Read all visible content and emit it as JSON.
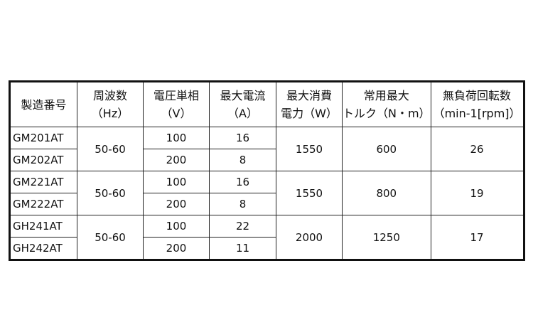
{
  "headers": [
    [
      "製造番号"
    ],
    [
      "周波数",
      "（Hz）"
    ],
    [
      "電圧単相",
      "（V）"
    ],
    [
      "最大電流",
      "（A）"
    ],
    [
      "最大消費",
      "電力（W）"
    ],
    [
      "常用最大",
      "トルク（N・m）"
    ],
    [
      "無負荷回転数",
      "（min-1[rpm]）"
    ]
  ],
  "groups": [
    {
      "frequency": "50-60",
      "power": "1550",
      "torque": "600",
      "rpm": "26",
      "rows": [
        {
          "model": "GM201AT",
          "voltage": "100",
          "current": "16"
        },
        {
          "model": "GM202AT",
          "voltage": "200",
          "current": "8"
        }
      ]
    },
    {
      "frequency": "50-60",
      "power": "1550",
      "torque": "800",
      "rpm": "19",
      "rows": [
        {
          "model": "GM221AT",
          "voltage": "100",
          "current": "16"
        },
        {
          "model": "GM222AT",
          "voltage": "200",
          "current": "8"
        }
      ]
    },
    {
      "frequency": "50-60",
      "power": "2000",
      "torque": "1250",
      "rpm": "17",
      "rows": [
        {
          "model": "GH241AT",
          "voltage": "100",
          "current": "22"
        },
        {
          "model": "GH242AT",
          "voltage": "200",
          "current": "11"
        }
      ]
    }
  ]
}
